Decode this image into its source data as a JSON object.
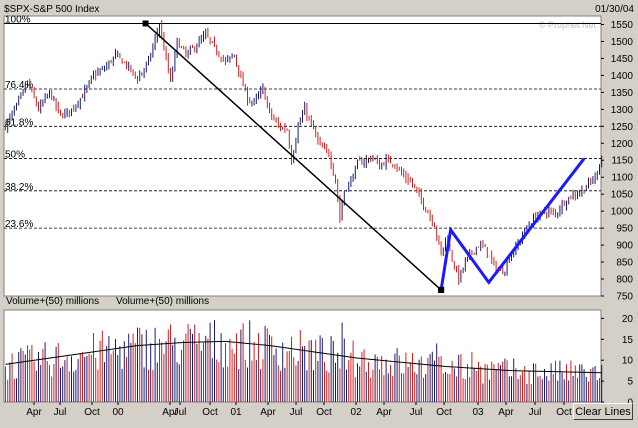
{
  "header": {
    "title": "$SPX-S&P 500 Index",
    "date": "01/30/04",
    "watermark": "© Prophet.Net"
  },
  "buttons": {
    "clear_lines": "Clear Lines"
  },
  "volume_panel": {
    "label_1": "Volume+(50) millions",
    "label_2": "Volume+(50) millions"
  },
  "chart_data": [
    {
      "type": "ohlc",
      "title": "$SPX-S&P 500 Index",
      "ylim": [
        750,
        1575
      ],
      "y_ticks": [
        750,
        800,
        850,
        900,
        950,
        1000,
        1050,
        1100,
        1150,
        1200,
        1250,
        1300,
        1350,
        1400,
        1450,
        1500,
        1550
      ],
      "x_ticks": [
        "Apr",
        "Jul",
        "Oct",
        "00",
        "Apr",
        "Jul",
        "Oct",
        "01",
        "Apr",
        "Jul",
        "Oct",
        "02",
        "Apr",
        "Jul",
        "Oct",
        "03",
        "Apr",
        "Jul",
        "Oct"
      ],
      "fib_levels": [
        {
          "label": "100%",
          "value": 1553
        },
        {
          "label": "76.4%",
          "value": 1360
        },
        {
          "label": "61.8%",
          "value": 1250
        },
        {
          "label": "50%",
          "value": 1155
        },
        {
          "label": "38.2%",
          "value": 1060
        },
        {
          "label": "23.6%",
          "value": 950
        }
      ],
      "price_anchors": [
        [
          0,
          1250
        ],
        [
          5,
          1310
        ],
        [
          10,
          1380
        ],
        [
          15,
          1300
        ],
        [
          20,
          1350
        ],
        [
          25,
          1280
        ],
        [
          30,
          1300
        ],
        [
          35,
          1340
        ],
        [
          40,
          1400
        ],
        [
          45,
          1420
        ],
        [
          50,
          1460
        ],
        [
          55,
          1430
        ],
        [
          60,
          1390
        ],
        [
          65,
          1440
        ],
        [
          70,
          1550
        ],
        [
          72,
          1480
        ],
        [
          75,
          1380
        ],
        [
          78,
          1500
        ],
        [
          82,
          1460
        ],
        [
          87,
          1490
        ],
        [
          91,
          1520
        ],
        [
          95,
          1480
        ],
        [
          100,
          1440
        ],
        [
          104,
          1460
        ],
        [
          107,
          1390
        ],
        [
          110,
          1330
        ],
        [
          113,
          1320
        ],
        [
          117,
          1360
        ],
        [
          120,
          1290
        ],
        [
          124,
          1250
        ],
        [
          128,
          1240
        ],
        [
          130,
          1150
        ],
        [
          133,
          1250
        ],
        [
          136,
          1300
        ],
        [
          140,
          1240
        ],
        [
          143,
          1190
        ],
        [
          147,
          1170
        ],
        [
          150,
          1090
        ],
        [
          152,
          980
        ],
        [
          154,
          1060
        ],
        [
          157,
          1090
        ],
        [
          160,
          1140
        ],
        [
          164,
          1150
        ],
        [
          167,
          1160
        ],
        [
          170,
          1130
        ],
        [
          173,
          1150
        ],
        [
          177,
          1140
        ],
        [
          180,
          1110
        ],
        [
          185,
          1080
        ],
        [
          190,
          1020
        ],
        [
          195,
          960
        ],
        [
          198,
          870
        ],
        [
          200,
          920
        ],
        [
          203,
          860
        ],
        [
          206,
          800
        ],
        [
          209,
          850
        ],
        [
          212,
          880
        ],
        [
          215,
          900
        ],
        [
          218,
          890
        ],
        [
          222,
          840
        ],
        [
          225,
          820
        ],
        [
          227,
          830
        ],
        [
          229,
          865
        ],
        [
          232,
          890
        ],
        [
          235,
          930
        ],
        [
          238,
          960
        ],
        [
          241,
          985
        ],
        [
          244,
          995
        ],
        [
          247,
          1000
        ],
        [
          250,
          990
        ],
        [
          253,
          1020
        ],
        [
          256,
          1040
        ],
        [
          259,
          1050
        ],
        [
          262,
          1060
        ],
        [
          265,
          1080
        ],
        [
          268,
          1100
        ],
        [
          270,
          1140
        ],
        [
          271,
          1155
        ]
      ],
      "trendlines": [
        {
          "color": "#000000",
          "points": [
            [
              "2000-03",
              1553
            ],
            [
              "2002-10",
              768
            ]
          ]
        },
        {
          "color": "#1a1aff",
          "points": [
            [
              "2002-10",
              768
            ],
            [
              "2002-11",
              945
            ],
            [
              "2003-03",
              790
            ],
            [
              "2004-01",
              1155
            ]
          ]
        }
      ]
    },
    {
      "type": "bar",
      "name": "Volume+(50) millions",
      "ylim": [
        0,
        22
      ],
      "y_ticks": [
        0,
        5,
        10,
        15,
        20
      ],
      "ma_anchors": [
        [
          0,
          9
        ],
        [
          20,
          10.5
        ],
        [
          40,
          12
        ],
        [
          60,
          13.5
        ],
        [
          80,
          14.2
        ],
        [
          100,
          14.5
        ],
        [
          120,
          13.5
        ],
        [
          140,
          12
        ],
        [
          160,
          10.5
        ],
        [
          180,
          9.5
        ],
        [
          200,
          8.5
        ],
        [
          230,
          7.5
        ],
        [
          271,
          7
        ]
      ],
      "spikes": [
        [
          153,
          19
        ],
        [
          196,
          14
        ],
        [
          212,
          12
        ]
      ]
    }
  ],
  "colors": {
    "up": "#1a1a70",
    "down": "#d02020",
    "trend_black": "#000000",
    "trend_blue": "#1a1aff",
    "panel_bg": "#ffffff",
    "frame_bg": "#d4d0c8"
  }
}
